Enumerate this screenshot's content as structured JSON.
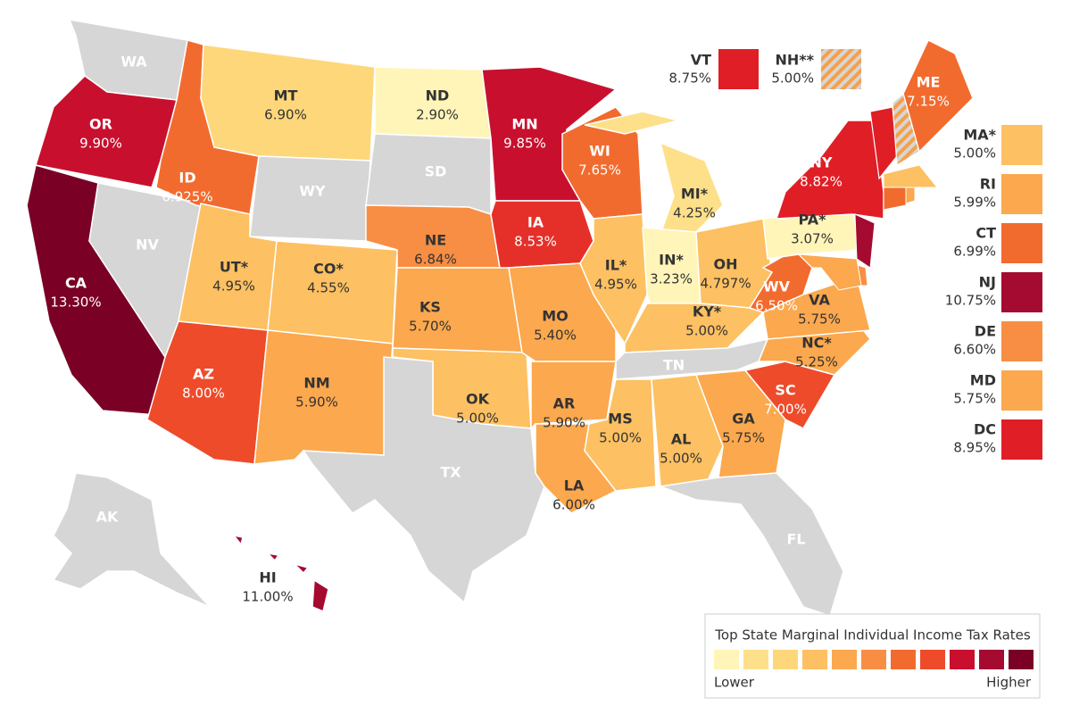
{
  "map": {
    "states": [
      {
        "abbr": "WA",
        "color": "#d6d6d6"
      },
      {
        "abbr": "OR",
        "rate": "9.90%",
        "color": "#c8102e"
      },
      {
        "abbr": "CA",
        "rate": "13.30%",
        "color": "#7a0026"
      },
      {
        "abbr": "NV",
        "color": "#d6d6d6"
      },
      {
        "abbr": "ID",
        "rate": "6.925%",
        "color": "#f26b2e"
      },
      {
        "abbr": "MT",
        "rate": "6.90%",
        "color": "#fed77a"
      },
      {
        "abbr": "WY",
        "color": "#d6d6d6"
      },
      {
        "abbr": "UT*",
        "rate": "4.95%",
        "color": "#fdc062"
      },
      {
        "abbr": "CO*",
        "rate": "4.55%",
        "color": "#fdc062"
      },
      {
        "abbr": "AZ",
        "rate": "8.00%",
        "color": "#ee4b2b"
      },
      {
        "abbr": "NM",
        "rate": "5.90%",
        "color": "#fba84e"
      },
      {
        "abbr": "ND",
        "rate": "2.90%",
        "color": "#fff5b8"
      },
      {
        "abbr": "SD",
        "color": "#d6d6d6"
      },
      {
        "abbr": "NE",
        "rate": "6.84%",
        "color": "#f88e43"
      },
      {
        "abbr": "KS",
        "rate": "5.70%",
        "color": "#fba84e"
      },
      {
        "abbr": "OK",
        "rate": "5.00%",
        "color": "#fdc062"
      },
      {
        "abbr": "TX",
        "color": "#d6d6d6"
      },
      {
        "abbr": "MN",
        "rate": "9.85%",
        "color": "#c8102e"
      },
      {
        "abbr": "IA",
        "rate": "8.53%",
        "color": "#e5302a"
      },
      {
        "abbr": "MO",
        "rate": "5.40%",
        "color": "#fba84e"
      },
      {
        "abbr": "AR",
        "rate": "5.90%",
        "color": "#fba84e"
      },
      {
        "abbr": "LA",
        "rate": "6.00%",
        "color": "#fba84e"
      },
      {
        "abbr": "WI",
        "rate": "7.65%",
        "color": "#f26b2e"
      },
      {
        "abbr": "IL*",
        "rate": "4.95%",
        "color": "#fdc062"
      },
      {
        "abbr": "MI*",
        "rate": "4.25%",
        "color": "#fee08a"
      },
      {
        "abbr": "IN*",
        "rate": "3.23%",
        "color": "#fff5b8"
      },
      {
        "abbr": "OH",
        "rate": "4.797%",
        "color": "#fdc062"
      },
      {
        "abbr": "KY*",
        "rate": "5.00%",
        "color": "#fdc062"
      },
      {
        "abbr": "TN",
        "color": "#d6d6d6"
      },
      {
        "abbr": "MS",
        "rate": "5.00%",
        "color": "#fdc062"
      },
      {
        "abbr": "AL",
        "rate": "5.00%",
        "color": "#fdc062"
      },
      {
        "abbr": "GA",
        "rate": "5.75%",
        "color": "#fba84e"
      },
      {
        "abbr": "FL",
        "color": "#d6d6d6"
      },
      {
        "abbr": "SC",
        "rate": "7.00%",
        "color": "#ee4b2b"
      },
      {
        "abbr": "NC*",
        "rate": "5.25%",
        "color": "#fba84e"
      },
      {
        "abbr": "VA",
        "rate": "5.75%",
        "color": "#fba84e"
      },
      {
        "abbr": "WV",
        "rate": "6.50%",
        "color": "#f26b2e"
      },
      {
        "abbr": "PA*",
        "rate": "3.07%",
        "color": "#fff5b8"
      },
      {
        "abbr": "NY",
        "rate": "8.82%",
        "color": "#e01e26"
      },
      {
        "abbr": "ME",
        "rate": "7.15%",
        "color": "#f26b2e"
      },
      {
        "abbr": "AK",
        "color": "#d6d6d6"
      },
      {
        "abbr": "HI",
        "rate": "11.00%",
        "color": "#a50a30"
      }
    ],
    "top_legend": [
      {
        "abbr": "VT",
        "rate": "8.75%",
        "color": "#e01e26"
      },
      {
        "abbr": "NH**",
        "rate": "5.00%"
      }
    ],
    "side_legend": [
      {
        "abbr": "MA*",
        "rate": "5.00%",
        "color": "#fdc062"
      },
      {
        "abbr": "RI",
        "rate": "5.99%",
        "color": "#fba84e"
      },
      {
        "abbr": "CT",
        "rate": "6.99%",
        "color": "#f26b2e"
      },
      {
        "abbr": "NJ",
        "rate": "10.75%",
        "color": "#a50a30"
      },
      {
        "abbr": "DE",
        "rate": "6.60%",
        "color": "#f88e43"
      },
      {
        "abbr": "MD",
        "rate": "5.75%",
        "color": "#fba84e"
      },
      {
        "abbr": "DC",
        "rate": "8.95%",
        "color": "#e01e26"
      }
    ],
    "scale_legend": {
      "title": "Top State Marginal Individual Income Tax Rates",
      "low": "Lower",
      "high": "Higher",
      "colors": [
        "#fff5b8",
        "#fee08a",
        "#fed77a",
        "#fdc062",
        "#fba84e",
        "#f88e43",
        "#f26b2e",
        "#ee4b2b",
        "#c8102e",
        "#a50a30",
        "#7a0026"
      ]
    }
  }
}
